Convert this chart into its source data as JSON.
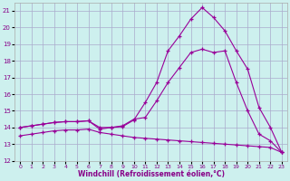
{
  "xlabel": "Windchill (Refroidissement éolien,°C)",
  "background_color": "#cdf0ee",
  "grid_color": "#aaaacc",
  "line_color": "#990099",
  "xlim": [
    -0.5,
    23.5
  ],
  "ylim": [
    12,
    21.5
  ],
  "yticks": [
    12,
    13,
    14,
    15,
    16,
    17,
    18,
    19,
    20,
    21
  ],
  "xticks": [
    0,
    1,
    2,
    3,
    4,
    5,
    6,
    7,
    8,
    9,
    10,
    11,
    12,
    13,
    14,
    15,
    16,
    17,
    18,
    19,
    20,
    21,
    22,
    23
  ],
  "line1_x": [
    0,
    1,
    2,
    3,
    4,
    5,
    6,
    7,
    8,
    9,
    10,
    11,
    12,
    13,
    14,
    15,
    16,
    17,
    18,
    19,
    20,
    21,
    22,
    23
  ],
  "line1_y": [
    14.0,
    14.1,
    14.2,
    14.3,
    14.35,
    14.35,
    14.4,
    14.0,
    14.0,
    14.05,
    14.45,
    15.5,
    16.7,
    18.6,
    19.5,
    20.5,
    21.2,
    20.6,
    19.8,
    18.6,
    17.5,
    15.2,
    14.0,
    12.5
  ],
  "line2_x": [
    0,
    1,
    2,
    3,
    4,
    5,
    6,
    7,
    8,
    9,
    10,
    11,
    12,
    13,
    14,
    15,
    16,
    17,
    18,
    19,
    20,
    21,
    22,
    23
  ],
  "line2_y": [
    14.0,
    14.1,
    14.2,
    14.3,
    14.35,
    14.35,
    14.4,
    13.9,
    14.0,
    14.1,
    14.5,
    14.6,
    15.6,
    16.7,
    17.6,
    18.5,
    18.7,
    18.5,
    18.6,
    16.7,
    15.0,
    13.6,
    13.2,
    12.5
  ],
  "line3_x": [
    0,
    1,
    2,
    3,
    4,
    5,
    6,
    7,
    8,
    9,
    10,
    11,
    12,
    13,
    14,
    15,
    16,
    17,
    18,
    19,
    20,
    21,
    22,
    23
  ],
  "line3_y": [
    13.5,
    13.6,
    13.7,
    13.8,
    13.85,
    13.85,
    13.9,
    13.7,
    13.6,
    13.5,
    13.4,
    13.35,
    13.3,
    13.25,
    13.2,
    13.15,
    13.1,
    13.05,
    13.0,
    12.95,
    12.9,
    12.85,
    12.8,
    12.5
  ]
}
